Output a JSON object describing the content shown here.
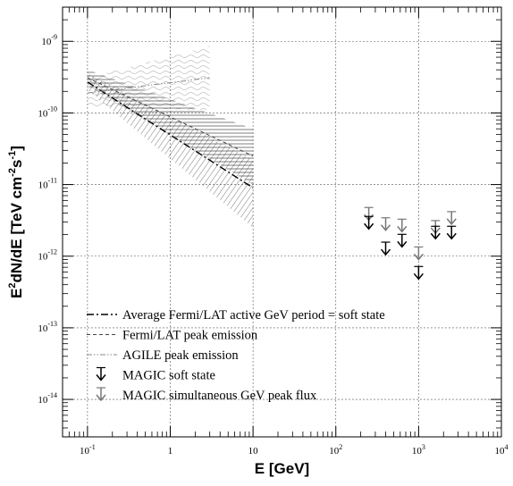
{
  "chart_data": {
    "type": "scatter",
    "xlabel": "E [GeV]",
    "ylabel": "E2dN/dE [TeV cm-2s-1]",
    "x_scale": "log",
    "y_scale": "log",
    "xlim": [
      0.05,
      10000
    ],
    "ylim": [
      3e-15,
      3e-09
    ],
    "grid": true,
    "legend_position": "bottom-left",
    "x_ticks": [
      {
        "value": 0.1,
        "base": "10",
        "exp": "-1"
      },
      {
        "value": 1,
        "base": "1",
        "exp": ""
      },
      {
        "value": 10,
        "base": "10",
        "exp": ""
      },
      {
        "value": 100,
        "base": "10",
        "exp": "2"
      },
      {
        "value": 1000,
        "base": "10",
        "exp": "3"
      },
      {
        "value": 10000,
        "base": "10",
        "exp": "4"
      }
    ],
    "y_ticks": [
      {
        "value": 1e-14,
        "base": "10",
        "exp": "-14"
      },
      {
        "value": 1e-13,
        "base": "10",
        "exp": "-13"
      },
      {
        "value": 1e-12,
        "base": "10",
        "exp": "-12"
      },
      {
        "value": 1e-11,
        "base": "10",
        "exp": "-11"
      },
      {
        "value": 1e-10,
        "base": "10",
        "exp": "-10"
      },
      {
        "value": 1e-09,
        "base": "10",
        "exp": "-9"
      }
    ],
    "series": [
      {
        "name": "Average Fermi/LAT active GeV period = soft state",
        "style": "dash-dot",
        "color": "#000000",
        "x": [
          0.1,
          10
        ],
        "y": [
          2.7e-10,
          9e-12
        ],
        "band_low": [
          2.1e-10,
          2.5e-12
        ],
        "band_high": [
          3.6e-10,
          2.2e-11
        ]
      },
      {
        "name": "Fermi/LAT peak emission",
        "style": "dashed",
        "color": "#444444",
        "x": [
          0.1,
          10
        ],
        "y": [
          3.1e-10,
          2.5e-11
        ],
        "band_low": [
          2.4e-10,
          1e-11
        ],
        "band_high": [
          4e-10,
          6e-11
        ]
      },
      {
        "name": "AGILE peak emission",
        "style": "dash-dot-dot",
        "color": "#888888",
        "x": [
          0.1,
          3
        ],
        "y": [
          1.9e-10,
          3.1e-10
        ],
        "band_low": [
          1.2e-10,
          1.1e-10
        ],
        "band_high": [
          3.1e-10,
          8.5e-10
        ]
      },
      {
        "name": "MAGIC soft state",
        "type": "upper_limits",
        "color": "#000000",
        "x": [
          250,
          400,
          630,
          1000,
          1600,
          2500
        ],
        "y": [
          2.4e-12,
          1.05e-12,
          1.35e-12,
          4.8e-13,
          1.75e-12,
          1.75e-12
        ]
      },
      {
        "name": "MAGIC simultaneous GeV peak flux",
        "type": "upper_limits",
        "color": "#777777",
        "x": [
          250,
          400,
          630,
          1000,
          1600,
          2500
        ],
        "y": [
          3.2e-12,
          2.3e-12,
          2.2e-12,
          9e-13,
          2.1e-12,
          2.8e-12
        ]
      }
    ]
  }
}
